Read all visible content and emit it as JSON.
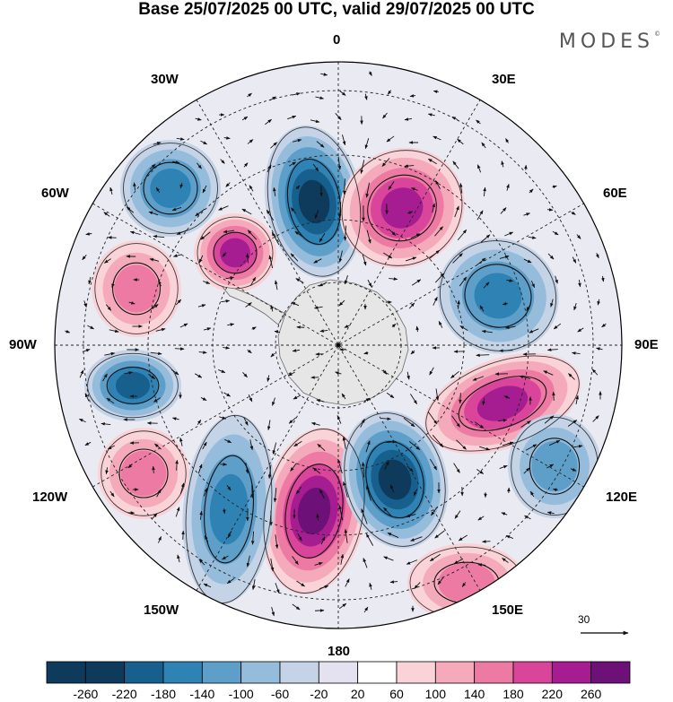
{
  "title": "Base 25/07/2025 00 UTC, valid 29/07/2025 00 UTC",
  "brand": "MODES",
  "brand_mark": "©",
  "longitudes": {
    "top": "0",
    "bottom": "180",
    "left": "90W",
    "right": "90E",
    "n30w": "30W",
    "n30e": "30E",
    "n60w": "60W",
    "n60e": "60E",
    "s120w": "120W",
    "s120e": "120E",
    "s150w": "150W",
    "s150e": "150E"
  },
  "wind_reference": "30",
  "colorbar": {
    "labels": [
      "-260",
      "-220",
      "-180",
      "-140",
      "-100",
      "-60",
      "-20",
      "20",
      "60",
      "100",
      "140",
      "180",
      "220",
      "260"
    ],
    "colors": [
      "#0e3a5c",
      "#17608e",
      "#2f83b4",
      "#5d9fc9",
      "#96bcdc",
      "#c5d3e6",
      "#e4e2f0",
      "#ffffff",
      "#f9d3d8",
      "#f4aabb",
      "#ec7aa3",
      "#d9459a",
      "#a61d91",
      "#6d1178"
    ]
  },
  "anomalies": [
    {
      "sign": "neg",
      "strength": 0.95
    },
    {
      "sign": "pos",
      "strength": 0.9
    },
    {
      "sign": "neg",
      "strength": 0.6
    },
    {
      "sign": "pos",
      "strength": 0.8
    },
    {
      "sign": "neg",
      "strength": 0.65
    },
    {
      "sign": "pos",
      "strength": 0.55
    },
    {
      "sign": "neg",
      "strength": 0.75
    },
    {
      "sign": "pos",
      "strength": 0.95
    },
    {
      "sign": "neg",
      "strength": 1.0
    },
    {
      "sign": "pos",
      "strength": 0.9
    },
    {
      "sign": "neg",
      "strength": 0.7
    },
    {
      "sign": "pos",
      "strength": 0.45
    },
    {
      "sign": "neg",
      "strength": 0.45
    },
    {
      "sign": "pos",
      "strength": 0.5
    }
  ]
}
